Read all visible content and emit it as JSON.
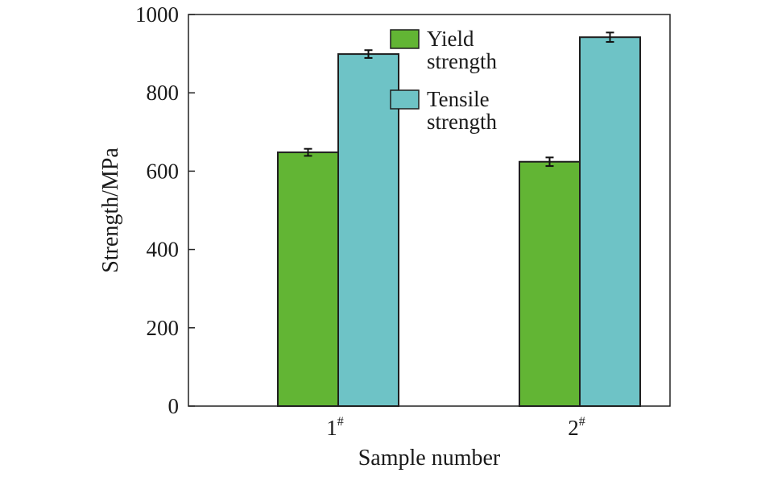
{
  "chart_data": {
    "type": "bar",
    "categories": [
      "1",
      "2"
    ],
    "category_superscript": "#",
    "series": [
      {
        "name": "Yield strength",
        "name_lines": [
          "Yield",
          "strength"
        ],
        "color": "#62b534",
        "values": [
          648,
          624
        ],
        "errors": [
          9,
          11
        ]
      },
      {
        "name": "Tensile strength",
        "name_lines": [
          "Tensile",
          "strength"
        ],
        "color": "#6ec3c6",
        "values": [
          899,
          942
        ],
        "errors": [
          10,
          12
        ]
      }
    ],
    "xlabel": "Sample number",
    "ylabel": "Strength/MPa",
    "ylim": [
      0,
      1000
    ],
    "yticks": [
      0,
      200,
      400,
      600,
      800,
      1000
    ],
    "legend_position": "top-right",
    "grid": false
  }
}
